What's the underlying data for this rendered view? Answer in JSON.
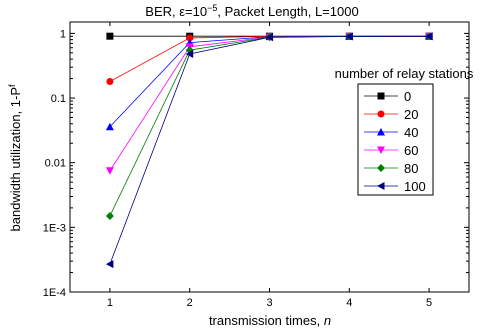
{
  "chart_data": {
    "type": "line",
    "title": {
      "prefix": "BER, ",
      "epsilon": "ε=10",
      "exponent": "−5",
      "suffix": ",   Packet Length, L=1000"
    },
    "xlabel": "transmission times, ",
    "xlabel_var": "n",
    "ylabel": "bandwidth utilization, 1-P",
    "ylabel_sup": "f",
    "x": [
      1,
      2,
      3,
      4,
      5
    ],
    "xlim": [
      0.5,
      5.5
    ],
    "ylim": [
      0.0001,
      1.5
    ],
    "yscale": "log",
    "xticks": [
      1,
      2,
      3,
      4,
      5
    ],
    "yticks": [
      {
        "value": 0.0001,
        "label": "1E-4"
      },
      {
        "value": 0.001,
        "label": "1E-3"
      },
      {
        "value": 0.01,
        "label": "0.01"
      },
      {
        "value": 0.1,
        "label": "0.1"
      },
      {
        "value": 1,
        "label": "1"
      }
    ],
    "legend": {
      "title": "number of relay stations",
      "position": "right"
    },
    "series": [
      {
        "name": "0",
        "color": "#000000",
        "marker": "square",
        "values": [
          0.905,
          0.905,
          0.905,
          0.905,
          0.905
        ]
      },
      {
        "name": "20",
        "color": "#ff0000",
        "marker": "circle",
        "values": [
          0.18,
          0.85,
          0.9,
          0.905,
          0.905
        ]
      },
      {
        "name": "40",
        "color": "#0000ff",
        "marker": "triangle-up",
        "values": [
          0.036,
          0.72,
          0.89,
          0.9,
          0.905
        ]
      },
      {
        "name": "60",
        "color": "#ff00ff",
        "marker": "triangle-down",
        "values": [
          0.0075,
          0.62,
          0.88,
          0.9,
          0.905
        ]
      },
      {
        "name": "80",
        "color": "#008000",
        "marker": "diamond",
        "values": [
          0.0015,
          0.55,
          0.875,
          0.9,
          0.905
        ]
      },
      {
        "name": "100",
        "color": "#000080",
        "marker": "triangle-left",
        "values": [
          0.00027,
          0.48,
          0.87,
          0.895,
          0.9
        ]
      }
    ]
  }
}
